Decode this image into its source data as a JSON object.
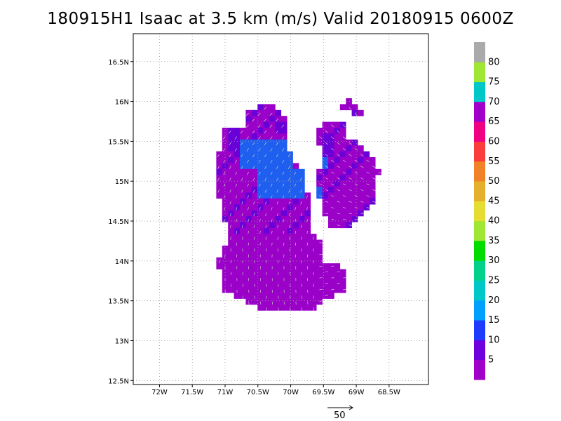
{
  "title": "180915H1 Isaac at 3.5 km (m/s) Valid 20180915 0600Z",
  "map": {
    "lon_range": [
      -72.4,
      -67.9
    ],
    "lat_range": [
      12.45,
      16.85
    ],
    "lon_ticks": [
      -72,
      -71.5,
      -71,
      -70.5,
      -70,
      -69.5,
      -69,
      -68.5
    ],
    "lon_tick_labels": [
      "72W",
      "71.5W",
      "71W",
      "70.5W",
      "70W",
      "69.5W",
      "69W",
      "68.5W"
    ],
    "lat_ticks": [
      12.5,
      13,
      13.5,
      14,
      14.5,
      15,
      15.5,
      16,
      16.5
    ],
    "lat_tick_labels": [
      "12.5N",
      "13N",
      "13.5N",
      "14N",
      "14.5N",
      "15N",
      "15.5N",
      "16N",
      "16.5N"
    ],
    "grid": true,
    "grid_style": "dotted",
    "wind_field": {
      "description_colors": {
        "low": "#9a00c8",
        "mid": "#6a00d8",
        "high": "#1e5ff0"
      }
    }
  },
  "colorbar": {
    "labels": [
      "5",
      "10",
      "15",
      "20",
      "25",
      "30",
      "35",
      "40",
      "45",
      "50",
      "55",
      "60",
      "65",
      "70",
      "75",
      "80"
    ],
    "colors": [
      "#a000c8",
      "#6e00dc",
      "#1e3cff",
      "#00a0ff",
      "#00c8c8",
      "#00d28c",
      "#00dc00",
      "#a0e632",
      "#e6dc32",
      "#e6af2d",
      "#f08228",
      "#fa3c3c",
      "#f00082",
      "#a000c8",
      "#00c8c8",
      "#a0e632",
      "#aaaaaa"
    ]
  },
  "reference_vector": {
    "label": "50"
  }
}
